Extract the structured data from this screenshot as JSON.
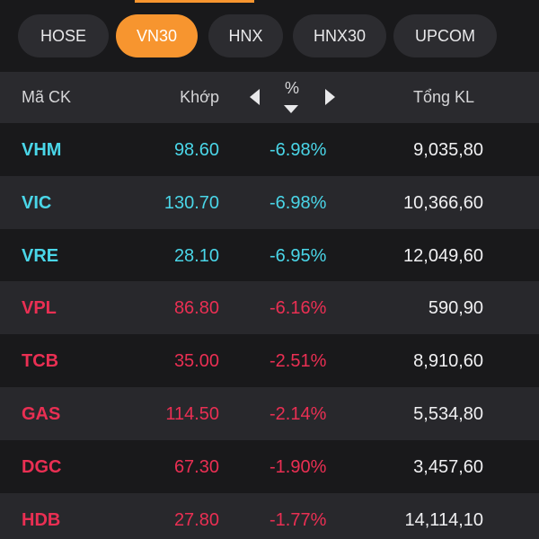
{
  "colors": {
    "accent": "#f7952f",
    "floor": "#4ad6e8",
    "down": "#ea2f53",
    "neutral_text": "#f0f0f2"
  },
  "tabs": [
    {
      "label": "HOSE"
    },
    {
      "label": "VN30"
    },
    {
      "label": "HNX"
    },
    {
      "label": "HNX30"
    },
    {
      "label": "UPCOM"
    }
  ],
  "active_tab": "VN30",
  "header": {
    "symbol": "Mã CK",
    "match": "Khớp",
    "pct": "%",
    "total": "Tổng KL",
    "prev_icon": "caret-left-icon",
    "next_icon": "caret-right-icon",
    "sort_icon": "sort-down-icon"
  },
  "rows": [
    {
      "symbol": "VHM",
      "match": "98.60",
      "pct": "-6.98%",
      "total": "9,035,80",
      "status": "floor"
    },
    {
      "symbol": "VIC",
      "match": "130.70",
      "pct": "-6.98%",
      "total": "10,366,60",
      "status": "floor"
    },
    {
      "symbol": "VRE",
      "match": "28.10",
      "pct": "-6.95%",
      "total": "12,049,60",
      "status": "floor"
    },
    {
      "symbol": "VPL",
      "match": "86.80",
      "pct": "-6.16%",
      "total": "590,90",
      "status": "down"
    },
    {
      "symbol": "TCB",
      "match": "35.00",
      "pct": "-2.51%",
      "total": "8,910,60",
      "status": "down"
    },
    {
      "symbol": "GAS",
      "match": "114.50",
      "pct": "-2.14%",
      "total": "5,534,80",
      "status": "down"
    },
    {
      "symbol": "DGC",
      "match": "67.30",
      "pct": "-1.90%",
      "total": "3,457,60",
      "status": "down"
    },
    {
      "symbol": "HDB",
      "match": "27.80",
      "pct": "-1.77%",
      "total": "14,114,10",
      "status": "down"
    }
  ]
}
